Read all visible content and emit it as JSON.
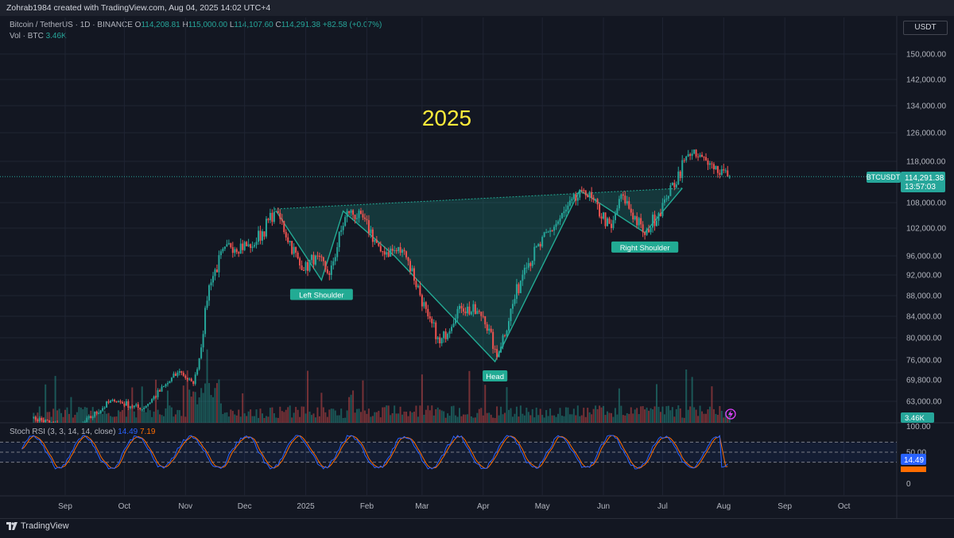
{
  "header": {
    "credit": "Zohrab1984 created with TradingView.com, Aug 04, 2025 14:02 UTC+4",
    "symbol": "Bitcoin / TetherUS · 1D · BINANCE",
    "ohlc": {
      "o_label": "O",
      "o": "114,208.81",
      "h_label": "H",
      "h": "115,000.00",
      "l_label": "L",
      "l": "114,107.60",
      "c_label": "C",
      "c": "114,291.38",
      "change": "+82.58 (+0.07%)"
    },
    "vol_label": "Vol · BTC",
    "vol_value": "3.46K",
    "currency": "USDT"
  },
  "stoch": {
    "label": "Stoch RSI (3, 3, 14, 14, close)",
    "k_value": "14.49",
    "d_value": "7.19",
    "axis": [
      "100.00",
      "50.00",
      "0"
    ]
  },
  "annotations": {
    "year": "2025",
    "left_shoulder": "Left Shoulder",
    "head": "Head",
    "right_shoulder": "Right Shoulder"
  },
  "price_tag": {
    "symbol": "BTCUSDT",
    "price": "114,291.38",
    "countdown": "13:57:03"
  },
  "vol_tag": "3.46K",
  "brand": "TradingView",
  "colors": {
    "up": "#26a69a",
    "down": "#ef5350",
    "k_line": "#2962ff",
    "d_line": "#ff6d00",
    "pattern": "#22ab94",
    "year": "#ffeb3b"
  },
  "chart_data": {
    "type": "candlestick",
    "yaxis_ticks": [
      150000,
      142000,
      134000,
      126000,
      118000,
      108000,
      102000,
      96000,
      92000,
      88000,
      84000,
      80000,
      76000,
      69800,
      63000
    ],
    "yaxis_labels": [
      "150,000.00",
      "142,000.00",
      "134,000.00",
      "126,000.00",
      "118,000.00",
      "108,000.00",
      "102,000.00",
      "96,000.00",
      "92,000.00",
      "88,000.00",
      "84,000.00",
      "80,000.00",
      "76,000.00",
      "69,800.00",
      "63,000.00"
    ],
    "xaxis_labels": [
      "Sep",
      "Oct",
      "Nov",
      "Dec",
      "2025",
      "Feb",
      "Mar",
      "Apr",
      "May",
      "Jun",
      "Jul",
      "Aug",
      "Sep",
      "Oct"
    ],
    "path": [
      [
        "2024-08-15",
        58000
      ],
      [
        "2024-09-06",
        54000
      ],
      [
        "2024-09-25",
        63500
      ],
      [
        "2024-10-10",
        60500
      ],
      [
        "2024-10-29",
        72500
      ],
      [
        "2024-11-05",
        68500
      ],
      [
        "2024-11-13",
        90000
      ],
      [
        "2024-11-22",
        98500
      ],
      [
        "2024-12-05",
        98000
      ],
      [
        "2024-12-17",
        106000
      ],
      [
        "2024-12-30",
        93000
      ],
      [
        "2025-01-07",
        96000
      ],
      [
        "2025-01-13",
        92000
      ],
      [
        "2025-01-22",
        106000
      ],
      [
        "2025-01-30",
        104500
      ],
      [
        "2025-02-08",
        97000
      ],
      [
        "2025-02-20",
        97000
      ],
      [
        "2025-03-04",
        84000
      ],
      [
        "2025-03-10",
        79000
      ],
      [
        "2025-03-20",
        86000
      ],
      [
        "2025-04-01",
        84000
      ],
      [
        "2025-04-08",
        76500
      ],
      [
        "2025-04-22",
        93500
      ],
      [
        "2025-05-08",
        103000
      ],
      [
        "2025-05-22",
        111000
      ],
      [
        "2025-06-05",
        102000
      ],
      [
        "2025-06-10",
        110000
      ],
      [
        "2025-06-22",
        100500
      ],
      [
        "2025-07-03",
        109000
      ],
      [
        "2025-07-14",
        120000
      ],
      [
        "2025-07-25",
        117500
      ],
      [
        "2025-08-04",
        114291
      ]
    ],
    "neckline": [
      [
        "2024-12-16",
        106500
      ],
      [
        "2025-07-11",
        111500
      ]
    ],
    "pattern_points": [
      [
        "2024-12-17",
        106000
      ],
      [
        "2025-01-09",
        91000
      ],
      [
        "2025-01-20",
        106000
      ],
      [
        "2025-02-15",
        96000
      ],
      [
        "2025-04-07",
        75500
      ],
      [
        "2025-05-20",
        111000
      ],
      [
        "2025-06-22",
        101000
      ],
      [
        "2025-07-11",
        111500
      ]
    ],
    "patterns": [
      {
        "label": "Left Shoulder",
        "date": "2025-01-09",
        "price": 91000
      },
      {
        "label": "Head",
        "date": "2025-04-07",
        "price": 75500
      },
      {
        "label": "Right Shoulder",
        "date": "2025-06-22",
        "price": 101000
      }
    ],
    "last_price": 114291.38
  }
}
